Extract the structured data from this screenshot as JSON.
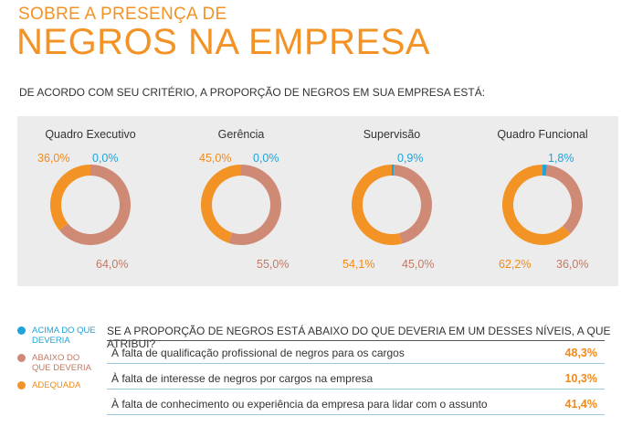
{
  "header": {
    "title_small": "SOBRE A PRESENÇA DE",
    "title_big": "NEGROS NA EMPRESA",
    "question": "DE ACORDO COM SEU CRITÉRIO, A PROPORÇÃO DE NEGROS EM SUA EMPRESA ESTÁ:"
  },
  "colors": {
    "acima": "#1fa3d8",
    "abaixo": "#cf8a76",
    "adequada": "#f39325"
  },
  "chart_data": [
    {
      "type": "pie",
      "title": "Quadro Executivo",
      "categories": [
        "Acima do que deveria",
        "Abaixo do que deveria",
        "Adequada"
      ],
      "values": [
        0.0,
        64.0,
        36.0
      ],
      "labels": {
        "acima": "0,0%",
        "abaixo": "64,0%",
        "adequada": "36,0%"
      }
    },
    {
      "type": "pie",
      "title": "Gerência",
      "categories": [
        "Acima do que deveria",
        "Abaixo do que deveria",
        "Adequada"
      ],
      "values": [
        0.0,
        55.0,
        45.0
      ],
      "labels": {
        "acima": "0,0%",
        "abaixo": "55,0%",
        "adequada": "45,0%"
      }
    },
    {
      "type": "pie",
      "title": "Supervisão",
      "categories": [
        "Acima do que deveria",
        "Abaixo do que deveria",
        "Adequada"
      ],
      "values": [
        0.9,
        45.0,
        54.1
      ],
      "labels": {
        "acima": "0,9%",
        "abaixo": "45,0%",
        "adequada": "54,1%"
      }
    },
    {
      "type": "pie",
      "title": "Quadro Funcional",
      "categories": [
        "Acima do que deveria",
        "Abaixo do que deveria",
        "Adequada"
      ],
      "values": [
        1.8,
        36.0,
        62.2
      ],
      "labels": {
        "acima": "1,8%",
        "abaixo": "36,0%",
        "adequada": "62,2%"
      }
    },
    {
      "type": "table",
      "title": "SE A PROPORÇÃO DE NEGROS ESTÁ ABAIXO DO QUE DEVERIA EM UM DESSES NÍVEIS, A QUE ATRIBUI?",
      "categories": [
        "À falta de qualificação profissional de negros para os cargos",
        "À falta de interesse de negros por cargos na empresa",
        "À falta de conhecimento ou experiência da empresa para lidar com o assunto"
      ],
      "values": [
        48.3,
        10.3,
        41.4
      ],
      "labels": [
        "48,3%",
        "10,3%",
        "41,4%"
      ]
    }
  ],
  "legend": {
    "acima": "ACIMA DO QUE DEVERIA",
    "abaixo": "ABAIXO DO QUE DEVERIA",
    "adequada": "ADEQUADA"
  }
}
